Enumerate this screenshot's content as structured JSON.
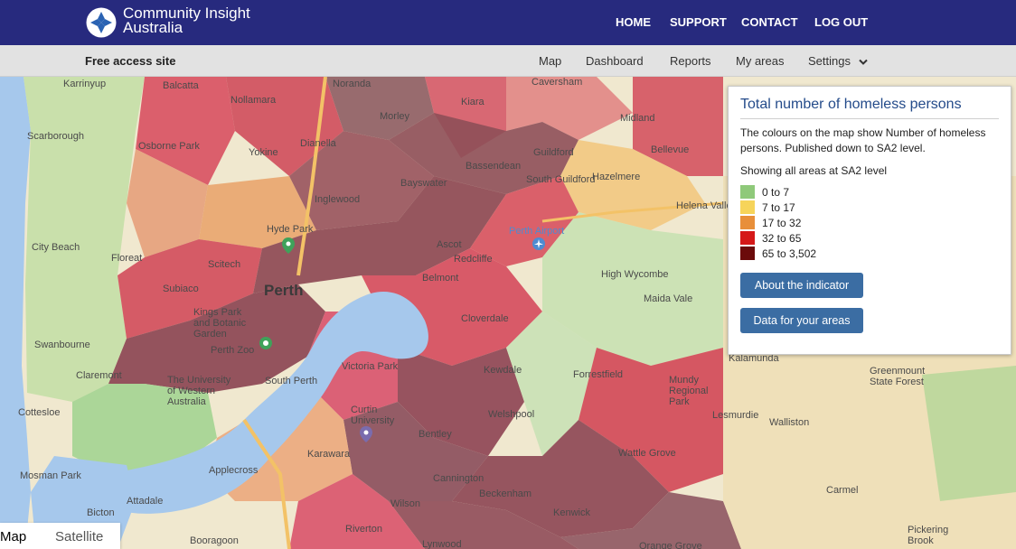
{
  "header": {
    "brand_line1": "Community Insight",
    "brand_line2": "Australia",
    "nav": [
      "HOME",
      "SUPPORT",
      "CONTACT",
      "LOG OUT"
    ]
  },
  "subbar": {
    "site_label": "Free access site",
    "nav": [
      "Map",
      "Dashboard",
      "Reports",
      "My areas",
      "Settings"
    ]
  },
  "panel": {
    "title": "Total number of homeless persons",
    "description": "The colours on the map show Number of homeless persons. Published down to SA2 level.",
    "showing": "Showing all areas at SA2 level",
    "legend": [
      {
        "label": "0 to 7",
        "color": "#8fc97a"
      },
      {
        "label": "7 to 17",
        "color": "#f6d45a"
      },
      {
        "label": "17 to 32",
        "color": "#e88f3a"
      },
      {
        "label": "32 to 65",
        "color": "#d51818"
      },
      {
        "label": "65 to 3,502",
        "color": "#6b0b0b"
      }
    ],
    "buttons": [
      "About the indicator",
      "Data for your areas"
    ]
  },
  "map_type": {
    "map": "Map",
    "satellite": "Satellite"
  },
  "map_labels": [
    "Karrinyup",
    "Balcatta",
    "Nollamara",
    "Noranda",
    "Morley",
    "Dianella",
    "Kiara",
    "Caversham",
    "Scarborough",
    "Osborne Park",
    "Yokine",
    "Bassendean",
    "Guildford",
    "Midland",
    "Bellevue",
    "Hazelmere",
    "South Guildford",
    "Inglewood",
    "Bayswater",
    "Helena Valley",
    "Hyde Park",
    "Perth Airport",
    "City Beach",
    "Floreat",
    "Scitech",
    "Ascot",
    "Redcliffe",
    "Belmont",
    "High Wycombe",
    "Perth",
    "Subiaco",
    "Maida Vale",
    "Kings Park and Botanic Garden",
    "Cloverdale",
    "Swanbourne",
    "Perth Zoo",
    "Victoria Park",
    "Kalamunda",
    "Claremont",
    "Forrestfield",
    "Kewdale",
    "Mundy Regional Park",
    "Greenmount State Forest",
    "The University of Western Australia",
    "South Perth",
    "Curtin University",
    "Lesmurdie",
    "Welshpool",
    "Walliston",
    "Cottesloe",
    "Bentley",
    "Wattle Grove",
    "Applecross",
    "Karawara",
    "Cannington",
    "Mosman Park",
    "Beckenham",
    "Carmel",
    "Attadale",
    "Wilson",
    "Kenwick",
    "Bicton",
    "Riverton",
    "Pickering Brook",
    "Booragoon",
    "Lynwood",
    "Orange Grove"
  ]
}
